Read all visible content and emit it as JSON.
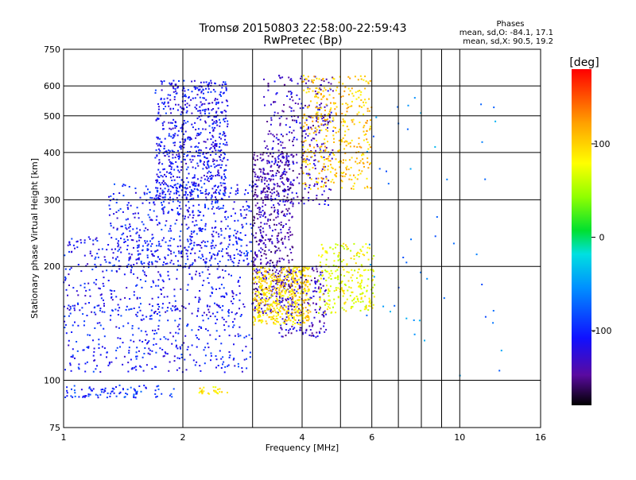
{
  "chart_data": {
    "type": "scatter",
    "title": "Tromsø 20150803 22:58:00-22:59:43",
    "subtitle": "RwPretec (Bp)",
    "xlabel": "Frequency [MHz]",
    "ylabel": "Stationary phase Virtual Height [km]",
    "x_scale": "log",
    "y_scale": "log",
    "xlim": [
      1,
      16
    ],
    "ylim": [
      75,
      750
    ],
    "x_ticks": [
      "1",
      "2",
      "4",
      "6",
      "10",
      "16"
    ],
    "x_tick_values": [
      1,
      2,
      4,
      6,
      10,
      16
    ],
    "x_grid_values": [
      1,
      2,
      3,
      4,
      5,
      6,
      7,
      8,
      9,
      10,
      16
    ],
    "y_ticks": [
      "75",
      "100",
      "200",
      "300",
      "400",
      "500",
      "600",
      "750"
    ],
    "y_tick_values": [
      75,
      100,
      200,
      300,
      400,
      500,
      600,
      750
    ],
    "grid": true,
    "legend": {
      "title": "Phases",
      "line1": "mean, sd,O: -84.1, 17.1",
      "line2": "mean, sd,X:  90.5, 19.2",
      "placement": "top-right"
    },
    "colorbar": {
      "label": "[deg]",
      "range": [
        -180,
        180
      ],
      "ticks": [
        "100",
        "0",
        "-100"
      ],
      "tick_values": [
        100,
        0,
        -100
      ],
      "colormap": "rainbow"
    },
    "point_clusters": [
      {
        "name": "o-low-trace",
        "x": [
          1.0,
          1.9
        ],
        "y": [
          90,
          97
        ],
        "phase": -95,
        "n": 90
      },
      {
        "name": "o-lower-f1",
        "x": [
          1.0,
          3.0
        ],
        "y": [
          105,
          160
        ],
        "phase": -105,
        "n": 350
      },
      {
        "name": "o-f1-band",
        "x": [
          1.0,
          2.8
        ],
        "y": [
          150,
          240
        ],
        "phase": -110,
        "n": 400
      },
      {
        "name": "o-f2-band",
        "x": [
          1.3,
          3.0
        ],
        "y": [
          200,
          330
        ],
        "phase": -105,
        "n": 500
      },
      {
        "name": "o-upper-f2",
        "x": [
          1.7,
          2.6
        ],
        "y": [
          300,
          620
        ],
        "phase": -110,
        "n": 700
      },
      {
        "name": "o-dark-column",
        "x": [
          3.0,
          3.8
        ],
        "y": [
          150,
          400
        ],
        "phase": -140,
        "n": 550
      },
      {
        "name": "o-cusp-upper",
        "x": [
          3.2,
          4.8
        ],
        "y": [
          290,
          640
        ],
        "phase": -130,
        "n": 350
      },
      {
        "name": "o-cusp-lower",
        "x": [
          3.5,
          4.6
        ],
        "y": [
          130,
          200
        ],
        "phase": -130,
        "n": 200
      },
      {
        "name": "x-mid-band",
        "x": [
          3.0,
          4.2
        ],
        "y": [
          140,
          200
        ],
        "phase": 95,
        "n": 500
      },
      {
        "name": "x-upper-band",
        "x": [
          4.0,
          6.0
        ],
        "y": [
          320,
          640
        ],
        "phase": 105,
        "n": 400
      },
      {
        "name": "x-right-band",
        "x": [
          4.4,
          6.1
        ],
        "y": [
          150,
          230
        ],
        "phase": 75,
        "n": 250
      },
      {
        "name": "x-low-trace",
        "x": [
          2.2,
          2.6
        ],
        "y": [
          92,
          96
        ],
        "phase": 95,
        "n": 25
      },
      {
        "name": "sparse-high",
        "x": [
          5.8,
          13.0
        ],
        "y": [
          100,
          600
        ],
        "phase": -60,
        "n": 50
      }
    ]
  }
}
